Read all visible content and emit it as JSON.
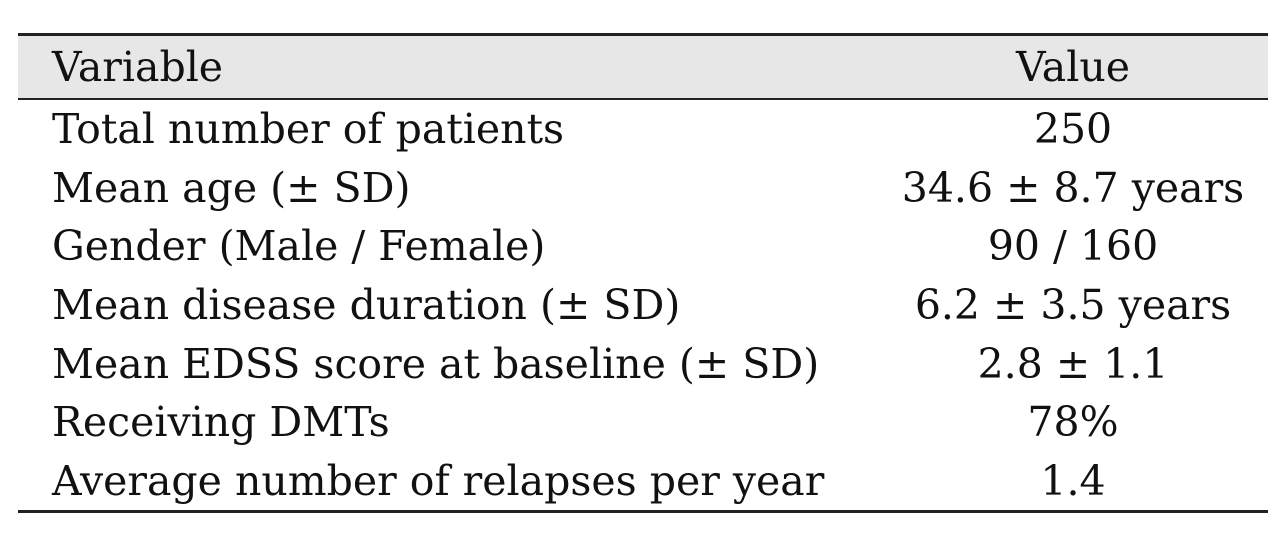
{
  "table": {
    "headers": [
      "Variable",
      "Value"
    ],
    "rows": [
      {
        "variable": "Total number of patients",
        "value": "250"
      },
      {
        "variable": "Mean age (± SD)",
        "value": "34.6 ± 8.7 years"
      },
      {
        "variable": "Gender (Male / Female)",
        "value": "90 / 160"
      },
      {
        "variable": "Mean disease duration (± SD)",
        "value": "6.2 ± 3.5 years"
      },
      {
        "variable": "Mean EDSS score at baseline (± SD)",
        "value": "2.8 ± 1.1"
      },
      {
        "variable": "Receiving DMTs",
        "value": "78%"
      },
      {
        "variable": "Average number of relapses per year",
        "value": "1.4"
      }
    ]
  }
}
